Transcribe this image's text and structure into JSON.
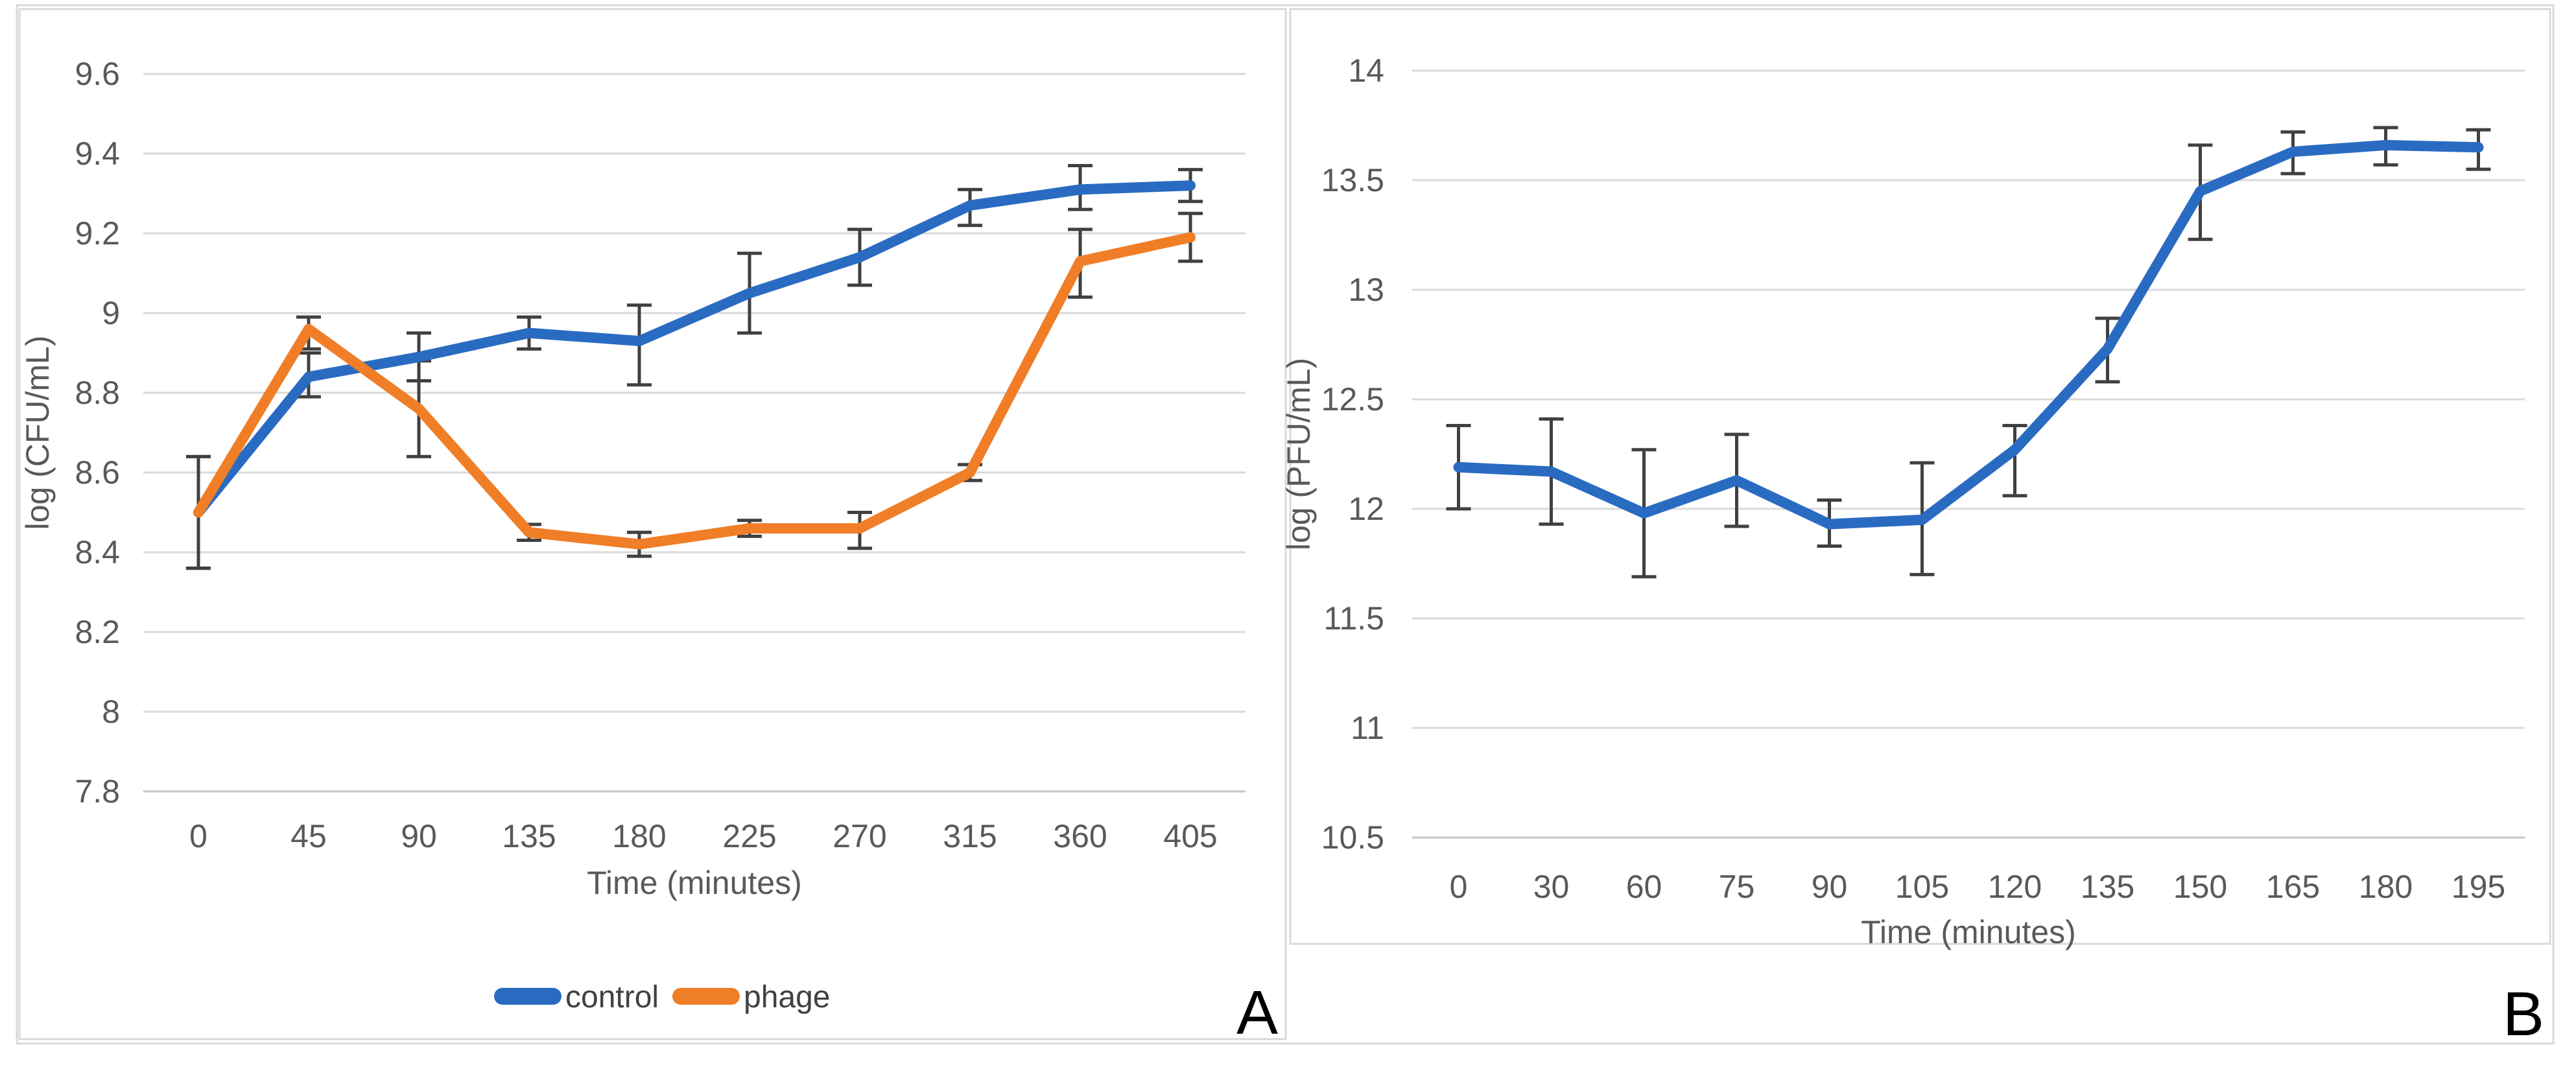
{
  "figure": {
    "background": "#FFFFFF",
    "outer_border_color": "#D9D9D9",
    "panel_border_color": "#D9D9D9",
    "gridline_color": "#D9D9D9",
    "axis_line_color": "#C6C6C6",
    "tick_text_color": "#595959",
    "error_bar_color": "#404040",
    "panel_letter_color": "#000000"
  },
  "chart_data": [
    {
      "type": "line",
      "panel_label": "A",
      "title": "",
      "xlabel": "Time (minutes)",
      "ylabel": "log (CFU/mL)",
      "ylim": [
        7.8,
        9.6
      ],
      "y_tick_labels": [
        "9.6",
        "9.4",
        "9.2",
        "9",
        "8.8",
        "8.6",
        "8.4",
        "8.2",
        "8",
        "7.8"
      ],
      "categories": [
        "0",
        "45",
        "90",
        "135",
        "180",
        "225",
        "270",
        "315",
        "360",
        "405"
      ],
      "grid": true,
      "legend_position": "bottom",
      "legend_visible": true,
      "series": [
        {
          "name": "control",
          "color": "#2A6BC2",
          "values": [
            8.5,
            8.84,
            8.89,
            8.95,
            8.93,
            9.05,
            9.14,
            9.27,
            9.31,
            9.32
          ],
          "err_low": [
            8.36,
            8.79,
            8.83,
            8.91,
            8.82,
            8.95,
            9.07,
            9.22,
            9.26,
            9.28
          ],
          "err_high": [
            8.64,
            8.9,
            8.95,
            8.99,
            9.02,
            9.15,
            9.21,
            9.31,
            9.37,
            9.36
          ]
        },
        {
          "name": "phage",
          "color": "#F07E27",
          "values": [
            8.5,
            8.96,
            8.76,
            8.45,
            8.42,
            8.46,
            8.46,
            8.6,
            9.13,
            9.19
          ],
          "err_low": [
            8.36,
            8.91,
            8.64,
            8.43,
            8.39,
            8.44,
            8.41,
            8.58,
            9.04,
            9.13
          ],
          "err_high": [
            8.64,
            8.99,
            8.88,
            8.47,
            8.45,
            8.48,
            8.5,
            8.62,
            9.21,
            9.25
          ]
        }
      ]
    },
    {
      "type": "line",
      "panel_label": "B",
      "title": "",
      "xlabel": "Time (minutes)",
      "ylabel": "log (PFU/mL)",
      "ylim": [
        10.5,
        14
      ],
      "y_tick_labels": [
        "14",
        "13.5",
        "13",
        "12.5",
        "12",
        "11.5",
        "11",
        "10.5"
      ],
      "categories": [
        "0",
        "30",
        "60",
        "75",
        "90",
        "105",
        "120",
        "135",
        "150",
        "165",
        "180",
        "195"
      ],
      "grid": true,
      "legend_position": "none",
      "legend_visible": false,
      "series": [
        {
          "name": "",
          "color": "#2A6BC2",
          "values": [
            12.19,
            12.17,
            11.98,
            12.13,
            11.93,
            11.95,
            12.27,
            12.73,
            13.45,
            13.63,
            13.66,
            13.65
          ],
          "err_low": [
            12.0,
            11.93,
            11.69,
            11.92,
            11.83,
            11.7,
            12.06,
            12.58,
            13.23,
            13.53,
            13.57,
            13.55
          ],
          "err_high": [
            12.38,
            12.41,
            12.27,
            12.34,
            12.04,
            12.21,
            12.38,
            12.87,
            13.66,
            13.72,
            13.74,
            13.73
          ]
        }
      ]
    }
  ]
}
